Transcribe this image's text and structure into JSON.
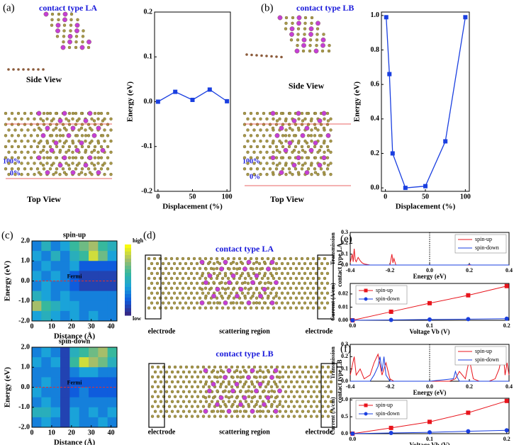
{
  "labels": {
    "a": "(a)",
    "b": "(b)",
    "c": "(c)",
    "d": "(d)",
    "e": "(e)",
    "f": "(f)",
    "a_type": "contact type LA",
    "b_type": "contact type LB",
    "a_side": "Side View",
    "a_top": "Top View",
    "b_side": "Side View",
    "b_top": "Top View",
    "a_100": "100%",
    "a_0": "0%",
    "b_100": "100%",
    "b_0": "0%",
    "d_type_la": "contact type LA",
    "d_type_lb": "contact type LB",
    "d_el_1": "electrode",
    "d_sc_1": "scattering region",
    "d_el_2": "electrode",
    "d_el_3": "electrode",
    "d_sc_2": "scattering region",
    "d_el_4": "electrode"
  },
  "chart_data": [
    {
      "type": "line",
      "x": [
        0,
        25,
        50,
        75,
        100
      ],
      "values": [
        0,
        0.022,
        0.004,
        0.027,
        0.001
      ],
      "color": "#1a3fe0",
      "marker": "square",
      "xlim": [
        -5,
        105
      ],
      "xticks": [
        0,
        50,
        100
      ],
      "ylim": [
        -0.2,
        0.2
      ],
      "yticks": [
        -0.2,
        -0.1,
        {
          "value": 0,
          "label": "0.0"
        },
        0.1,
        0.2
      ],
      "xlabel": "Displacement (%)",
      "ylabel": "Energy (eV)"
    },
    {
      "type": "line",
      "x": [
        1,
        5,
        9,
        25,
        50,
        75,
        100
      ],
      "values": [
        0.99,
        0.66,
        0.2,
        0.0,
        0.01,
        0.27,
        0.99
      ],
      "color": "#1a3fe0",
      "marker": "square",
      "xlim": [
        -5,
        105
      ],
      "xticks": [
        0,
        50,
        100
      ],
      "ylim": [
        -0.02,
        1.02
      ],
      "yticks": [
        {
          "value": 0,
          "label": "0.0"
        },
        0.2,
        0.4,
        0.6,
        0.8,
        {
          "value": 1,
          "label": "1.0"
        }
      ],
      "xlabel": "Displacement (%)",
      "ylabel": "Energy (eV)"
    },
    {
      "type": "heatmap",
      "title": "spin-up",
      "xlim": [
        0,
        43
      ],
      "xticks": [
        0,
        10,
        20,
        30,
        40
      ],
      "ylim": [
        -2,
        2
      ],
      "yticks": [
        {
          "value": -2,
          "label": "-2.0"
        },
        {
          "value": -1,
          "label": "-1.0"
        },
        {
          "value": 0,
          "label": "0.0"
        },
        {
          "value": 1,
          "label": "1.0"
        },
        {
          "value": 2,
          "label": "2.0"
        }
      ],
      "xlabel": "Distance (Å)",
      "ylabel": "Energy (eV)",
      "reference_line_y": 0,
      "annotation": "Fermi",
      "colorbar_high": "high",
      "colorbar_low": "low",
      "values": [
        [
          0.3,
          0.5,
          0.3,
          0.4,
          0.6,
          0.7,
          0.8,
          0.6,
          0.5
        ],
        [
          0.4,
          0.3,
          0.5,
          0.3,
          0.5,
          0.6,
          0.9,
          0.7,
          0.4
        ],
        [
          0.3,
          0.4,
          0.3,
          0.3,
          0.4,
          0.2,
          0.2,
          0.2,
          0.2
        ],
        [
          0.4,
          0.3,
          0.4,
          0.3,
          0.2,
          0.1,
          0.1,
          0.1,
          0.1
        ],
        [
          0.3,
          0.4,
          0.3,
          0.3,
          0.2,
          0.1,
          0.1,
          0.1,
          0.1
        ],
        [
          0.5,
          0.4,
          0.3,
          0.4,
          0.3,
          0.3,
          0.3,
          0.3,
          0.3
        ],
        [
          0.8,
          0.6,
          0.5,
          0.4,
          0.4,
          0.3,
          0.3,
          0.3,
          0.3
        ],
        [
          0.4,
          0.5,
          0.4,
          0.3,
          0.4,
          0.3,
          0.4,
          0.3,
          0.3
        ]
      ]
    },
    {
      "type": "heatmap",
      "title": "spin-down",
      "xlim": [
        0,
        43
      ],
      "xticks": [
        0,
        10,
        20,
        30,
        40
      ],
      "ylim": [
        -2,
        2
      ],
      "yticks": [
        {
          "value": -2,
          "label": "-2.0"
        },
        {
          "value": -1,
          "label": "-1.0"
        },
        {
          "value": 0,
          "label": "0.0"
        },
        {
          "value": 1,
          "label": "1.0"
        },
        {
          "value": 2,
          "label": "2.0"
        }
      ],
      "xlabel": "Distance (Å)",
      "ylabel": "Energy (eV)",
      "reference_line_y": 0,
      "annotation": "Fermi",
      "values": [
        [
          0.3,
          0.4,
          0.3,
          0.1,
          0.5,
          0.6,
          0.7,
          0.8,
          0.6
        ],
        [
          0.4,
          0.3,
          0.4,
          0.1,
          0.6,
          0.9,
          0.8,
          0.7,
          0.5
        ],
        [
          0.3,
          0.3,
          0.3,
          0.1,
          0.3,
          0.4,
          0.4,
          0.3,
          0.3
        ],
        [
          0.3,
          0.4,
          0.3,
          0.1,
          0.2,
          0.2,
          0.2,
          0.2,
          0.2
        ],
        [
          0.4,
          0.3,
          0.3,
          0.1,
          0.2,
          0.3,
          0.2,
          0.2,
          0.2
        ],
        [
          0.3,
          0.4,
          0.3,
          0.1,
          0.3,
          0.3,
          0.3,
          0.3,
          0.3
        ],
        [
          0.5,
          0.5,
          0.4,
          0.1,
          0.4,
          0.3,
          0.4,
          0.3,
          0.4
        ],
        [
          0.3,
          0.4,
          0.3,
          0.1,
          0.4,
          0.3,
          0.3,
          0.4,
          0.3
        ]
      ]
    },
    {
      "type": "line",
      "side_label": "contact type LA",
      "legend": "upper right",
      "reference_line_x": 0,
      "xlim": [
        -0.4,
        0.4
      ],
      "xticks": [
        -0.4,
        -0.2,
        {
          "value": 0,
          "label": "0.0"
        },
        0.2,
        0.4
      ],
      "ylim": [
        0,
        0.3
      ],
      "yticks": [
        {
          "value": 0,
          "label": "0.0"
        },
        0.1,
        0.2,
        0.3
      ],
      "xlabel": "Energy (eV)",
      "ylabel": "Transmission",
      "series": [
        {
          "name": "spin-up",
          "color": "#e8141c",
          "x": [
            -0.4,
            -0.39,
            -0.385,
            -0.38,
            -0.375,
            -0.37,
            -0.36,
            -0.35,
            -0.34,
            -0.33,
            -0.3,
            -0.25,
            -0.2,
            -0.19,
            -0.185,
            -0.18,
            -0.17,
            -0.16,
            0,
            0.2,
            0.4
          ],
          "values": [
            0.02,
            0.1,
            0.03,
            0.15,
            0.05,
            0.03,
            0.07,
            0.04,
            0.02,
            0.01,
            0,
            0,
            0,
            0.1,
            0.02,
            0.06,
            0,
            0,
            0,
            0,
            0
          ]
        },
        {
          "name": "spin-down",
          "color": "#1a3fe0",
          "x": [
            -0.4,
            0,
            0.19,
            0.2,
            0.21,
            0.4
          ],
          "values": [
            0,
            0,
            0,
            0.005,
            0,
            0
          ]
        }
      ]
    },
    {
      "type": "line",
      "legend": "upper left",
      "xlim": [
        -0.003,
        0.203
      ],
      "xticks": [
        {
          "value": 0,
          "label": "0.0"
        },
        0.1,
        0.2
      ],
      "ylim": [
        0,
        0.028
      ],
      "yticks": [
        {
          "value": 0,
          "label": "0.00"
        },
        0.01,
        {
          "value": 0.02,
          "label": "0.02"
        }
      ],
      "xlabel": "Voltage Vb (V)",
      "ylabel": "Current (A/cm)",
      "series": [
        {
          "name": "spin-up",
          "color": "#e8141c",
          "marker": "square",
          "x": [
            0,
            0.05,
            0.1,
            0.15,
            0.2
          ],
          "values": [
            0,
            0.0065,
            0.013,
            0.019,
            0.026
          ]
        },
        {
          "name": "spin-down",
          "color": "#1a3fe0",
          "marker": "circle",
          "x": [
            0,
            0.05,
            0.1,
            0.15,
            0.2
          ],
          "values": [
            0,
            0.0003,
            0.0006,
            0.0009,
            0.0012
          ]
        }
      ]
    },
    {
      "type": "line",
      "side_label": "contact type LB",
      "legend": "upper right",
      "reference_line_x": 0,
      "xlim": [
        -0.4,
        0.4
      ],
      "xticks": [
        -0.4,
        -0.2,
        {
          "value": 0,
          "label": "0.0"
        },
        0.2,
        0.4
      ],
      "ylim": [
        0,
        0.3
      ],
      "yticks": [
        {
          "value": 0,
          "label": "0.0"
        },
        0.1,
        0.2,
        0.3
      ],
      "xlabel": "Energy (eV)",
      "ylabel": "Transmission",
      "series": [
        {
          "name": "spin-up",
          "color": "#e8141c",
          "x": [
            -0.4,
            -0.38,
            -0.37,
            -0.35,
            -0.33,
            -0.3,
            -0.28,
            -0.26,
            -0.24,
            -0.22,
            -0.2,
            -0.18,
            -0.15,
            -0.1,
            -0.05,
            0,
            0.05,
            0.1,
            0.13,
            0.15,
            0.18,
            0.2,
            0.22,
            0.25,
            0.3,
            0.33,
            0.35,
            0.37,
            0.38,
            0.39,
            0.4
          ],
          "values": [
            0.05,
            0.2,
            0.05,
            0.1,
            0.02,
            0.05,
            0.15,
            0.22,
            0.05,
            0.15,
            0.02,
            0,
            0,
            0,
            0,
            0,
            0,
            0,
            0.02,
            0.08,
            0.02,
            0.18,
            0.02,
            0,
            0,
            0.02,
            0.1,
            0.25,
            0.05,
            0.15,
            0.05
          ]
        },
        {
          "name": "spin-down",
          "color": "#1a3fe0",
          "x": [
            -0.4,
            -0.3,
            -0.28,
            -0.26,
            -0.25,
            -0.24,
            -0.23,
            -0.22,
            -0.2,
            0,
            0.12,
            0.13,
            0.14,
            0.15,
            0.4
          ],
          "values": [
            0,
            0,
            0.05,
            0.12,
            0.2,
            0.08,
            0.2,
            0.05,
            0,
            0,
            0.02,
            0.08,
            0.03,
            0,
            0
          ]
        }
      ]
    },
    {
      "type": "line",
      "legend": "upper left",
      "xlim": [
        -0.003,
        0.203
      ],
      "xticks": [
        {
          "value": 0,
          "label": "0.0"
        },
        0.1,
        0.2
      ],
      "ylim": [
        0,
        1.05
      ],
      "yticks": [
        {
          "value": 0,
          "label": "0.0"
        },
        0.5,
        {
          "value": 1,
          "label": "1.0"
        }
      ],
      "xlabel": "Voltage Vb (V)",
      "ylabel": "Current (A/cm)",
      "series": [
        {
          "name": "spin-up",
          "color": "#e8141c",
          "marker": "square",
          "x": [
            0,
            0.05,
            0.1,
            0.15,
            0.2
          ],
          "values": [
            0,
            0.17,
            0.35,
            0.62,
            0.97
          ]
        },
        {
          "name": "spin-down",
          "color": "#1a3fe0",
          "marker": "circle",
          "x": [
            0,
            0.05,
            0.1,
            0.15,
            0.2
          ],
          "values": [
            0,
            0.02,
            0.04,
            0.07,
            0.1
          ]
        }
      ]
    }
  ]
}
